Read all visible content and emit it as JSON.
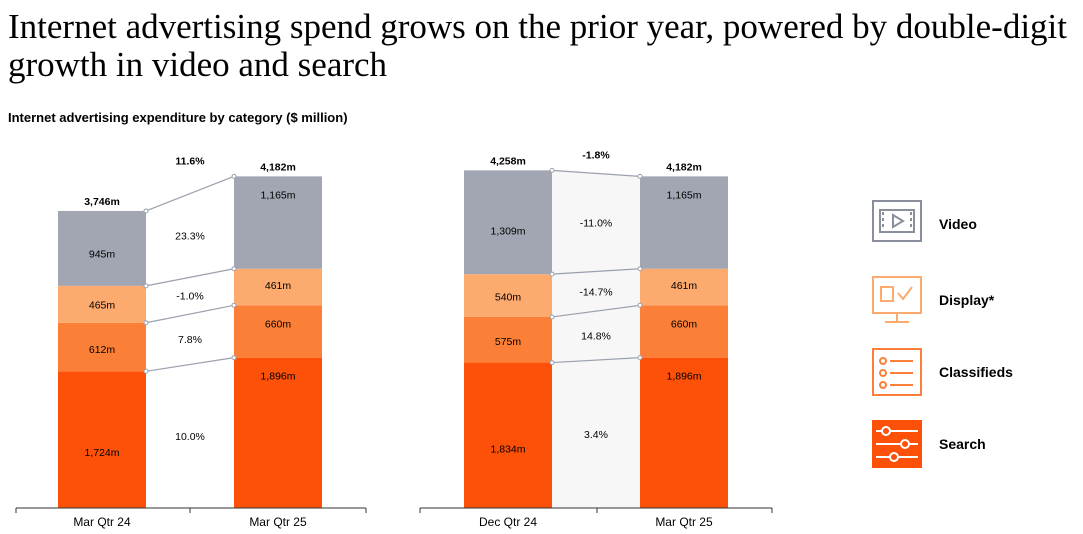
{
  "title": "Internet advertising spend grows on the prior year, powered by double-digit growth in video and search",
  "subtitle": "Internet advertising expenditure by category ($ million)",
  "colors": {
    "video": "#a2a6b2",
    "display": "#fdaa6f",
    "classifieds": "#fc7f37",
    "search": "#fd5109",
    "connector": "#9aa0ad",
    "band_right": "#f7f7f7"
  },
  "legend": [
    {
      "key": "video",
      "label": "Video",
      "icon": "video-icon"
    },
    {
      "key": "display",
      "label": "Display*",
      "icon": "display-monitor-icon"
    },
    {
      "key": "classifieds",
      "label": "Classifieds",
      "icon": "classifieds-list-icon"
    },
    {
      "key": "search",
      "label": "Search",
      "icon": "search-sliders-icon"
    }
  ],
  "chart_data": [
    {
      "type": "bar",
      "stacked": true,
      "categories": [
        "Mar Qtr 24",
        "Mar Qtr 25"
      ],
      "series": [
        {
          "name": "Search",
          "values": [
            1724,
            1896
          ],
          "labels": [
            "1,724m",
            "1,896m"
          ]
        },
        {
          "name": "Classifieds",
          "values": [
            612,
            660
          ],
          "labels": [
            "612m",
            "660m"
          ]
        },
        {
          "name": "Display*",
          "values": [
            465,
            461
          ],
          "labels": [
            "465m",
            "461m"
          ]
        },
        {
          "name": "Video",
          "values": [
            945,
            1165
          ],
          "labels": [
            "945m",
            "1,165m"
          ]
        }
      ],
      "totals": [
        3746,
        4182
      ],
      "total_labels": [
        "3,746m",
        "4,182m"
      ],
      "changes": {
        "total": "11.6%",
        "Video": "23.3%",
        "Display*": "-1.0%",
        "Classifieds": "7.8%",
        "Search": "10.0%"
      }
    },
    {
      "type": "bar",
      "stacked": true,
      "categories": [
        "Dec Qtr 24",
        "Mar Qtr 25"
      ],
      "series": [
        {
          "name": "Search",
          "values": [
            1834,
            1896
          ],
          "labels": [
            "1,834m",
            "1,896m"
          ]
        },
        {
          "name": "Classifieds",
          "values": [
            575,
            660
          ],
          "labels": [
            "575m",
            "660m"
          ]
        },
        {
          "name": "Display*",
          "values": [
            540,
            461
          ],
          "labels": [
            "540m",
            "461m"
          ]
        },
        {
          "name": "Video",
          "values": [
            1309,
            1165
          ],
          "labels": [
            "1,309m",
            "1,165m"
          ]
        }
      ],
      "totals": [
        4258,
        4182
      ],
      "total_labels": [
        "4,258m",
        "4,182m"
      ],
      "changes": {
        "total": "-1.8%",
        "Video": "-11.0%",
        "Display*": "-14.7%",
        "Classifieds": "14.8%",
        "Search": "3.4%"
      }
    }
  ]
}
